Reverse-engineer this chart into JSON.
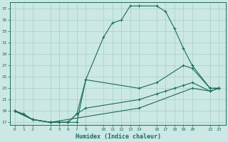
{
  "xlabel": "Humidex (Indice chaleur)",
  "bg_color": "#cce8e4",
  "grid_color": "#aad4cc",
  "line_color": "#1a6b5a",
  "xlim": [
    -0.5,
    23.8
  ],
  "ylim": [
    16.5,
    38.2
  ],
  "xticks": [
    0,
    1,
    2,
    4,
    5,
    6,
    7,
    8,
    10,
    11,
    12,
    13,
    14,
    16,
    17,
    18,
    19,
    20,
    22,
    23
  ],
  "yticks": [
    17,
    19,
    21,
    23,
    25,
    27,
    29,
    31,
    33,
    35,
    37
  ],
  "series": [
    {
      "x": [
        0,
        1,
        2,
        4,
        5,
        6,
        7,
        8,
        10,
        11,
        12,
        13,
        14,
        16,
        17,
        18,
        19,
        20,
        22,
        23
      ],
      "y": [
        19,
        18.5,
        17.5,
        17,
        17,
        17,
        17,
        24.5,
        32,
        34.5,
        35,
        37.5,
        37.5,
        37.5,
        36.5,
        33.5,
        30,
        27,
        23,
        23
      ]
    },
    {
      "x": [
        0,
        2,
        4,
        5,
        6,
        7,
        8,
        14,
        16,
        19,
        20,
        22,
        23
      ],
      "y": [
        19,
        17.5,
        17,
        17,
        17,
        18.5,
        24.5,
        23,
        24,
        27,
        26.5,
        23,
        23
      ]
    },
    {
      "x": [
        0,
        2,
        4,
        5,
        6,
        7,
        8,
        14,
        16,
        17,
        18,
        19,
        20,
        22,
        23
      ],
      "y": [
        19,
        17.5,
        17,
        17,
        17,
        18.5,
        19.5,
        21,
        22,
        22.5,
        23,
        23.5,
        24,
        22.5,
        23
      ]
    },
    {
      "x": [
        0,
        2,
        4,
        14,
        20,
        22,
        23
      ],
      "y": [
        19,
        17.5,
        17,
        19.5,
        23,
        22.5,
        23
      ]
    }
  ]
}
